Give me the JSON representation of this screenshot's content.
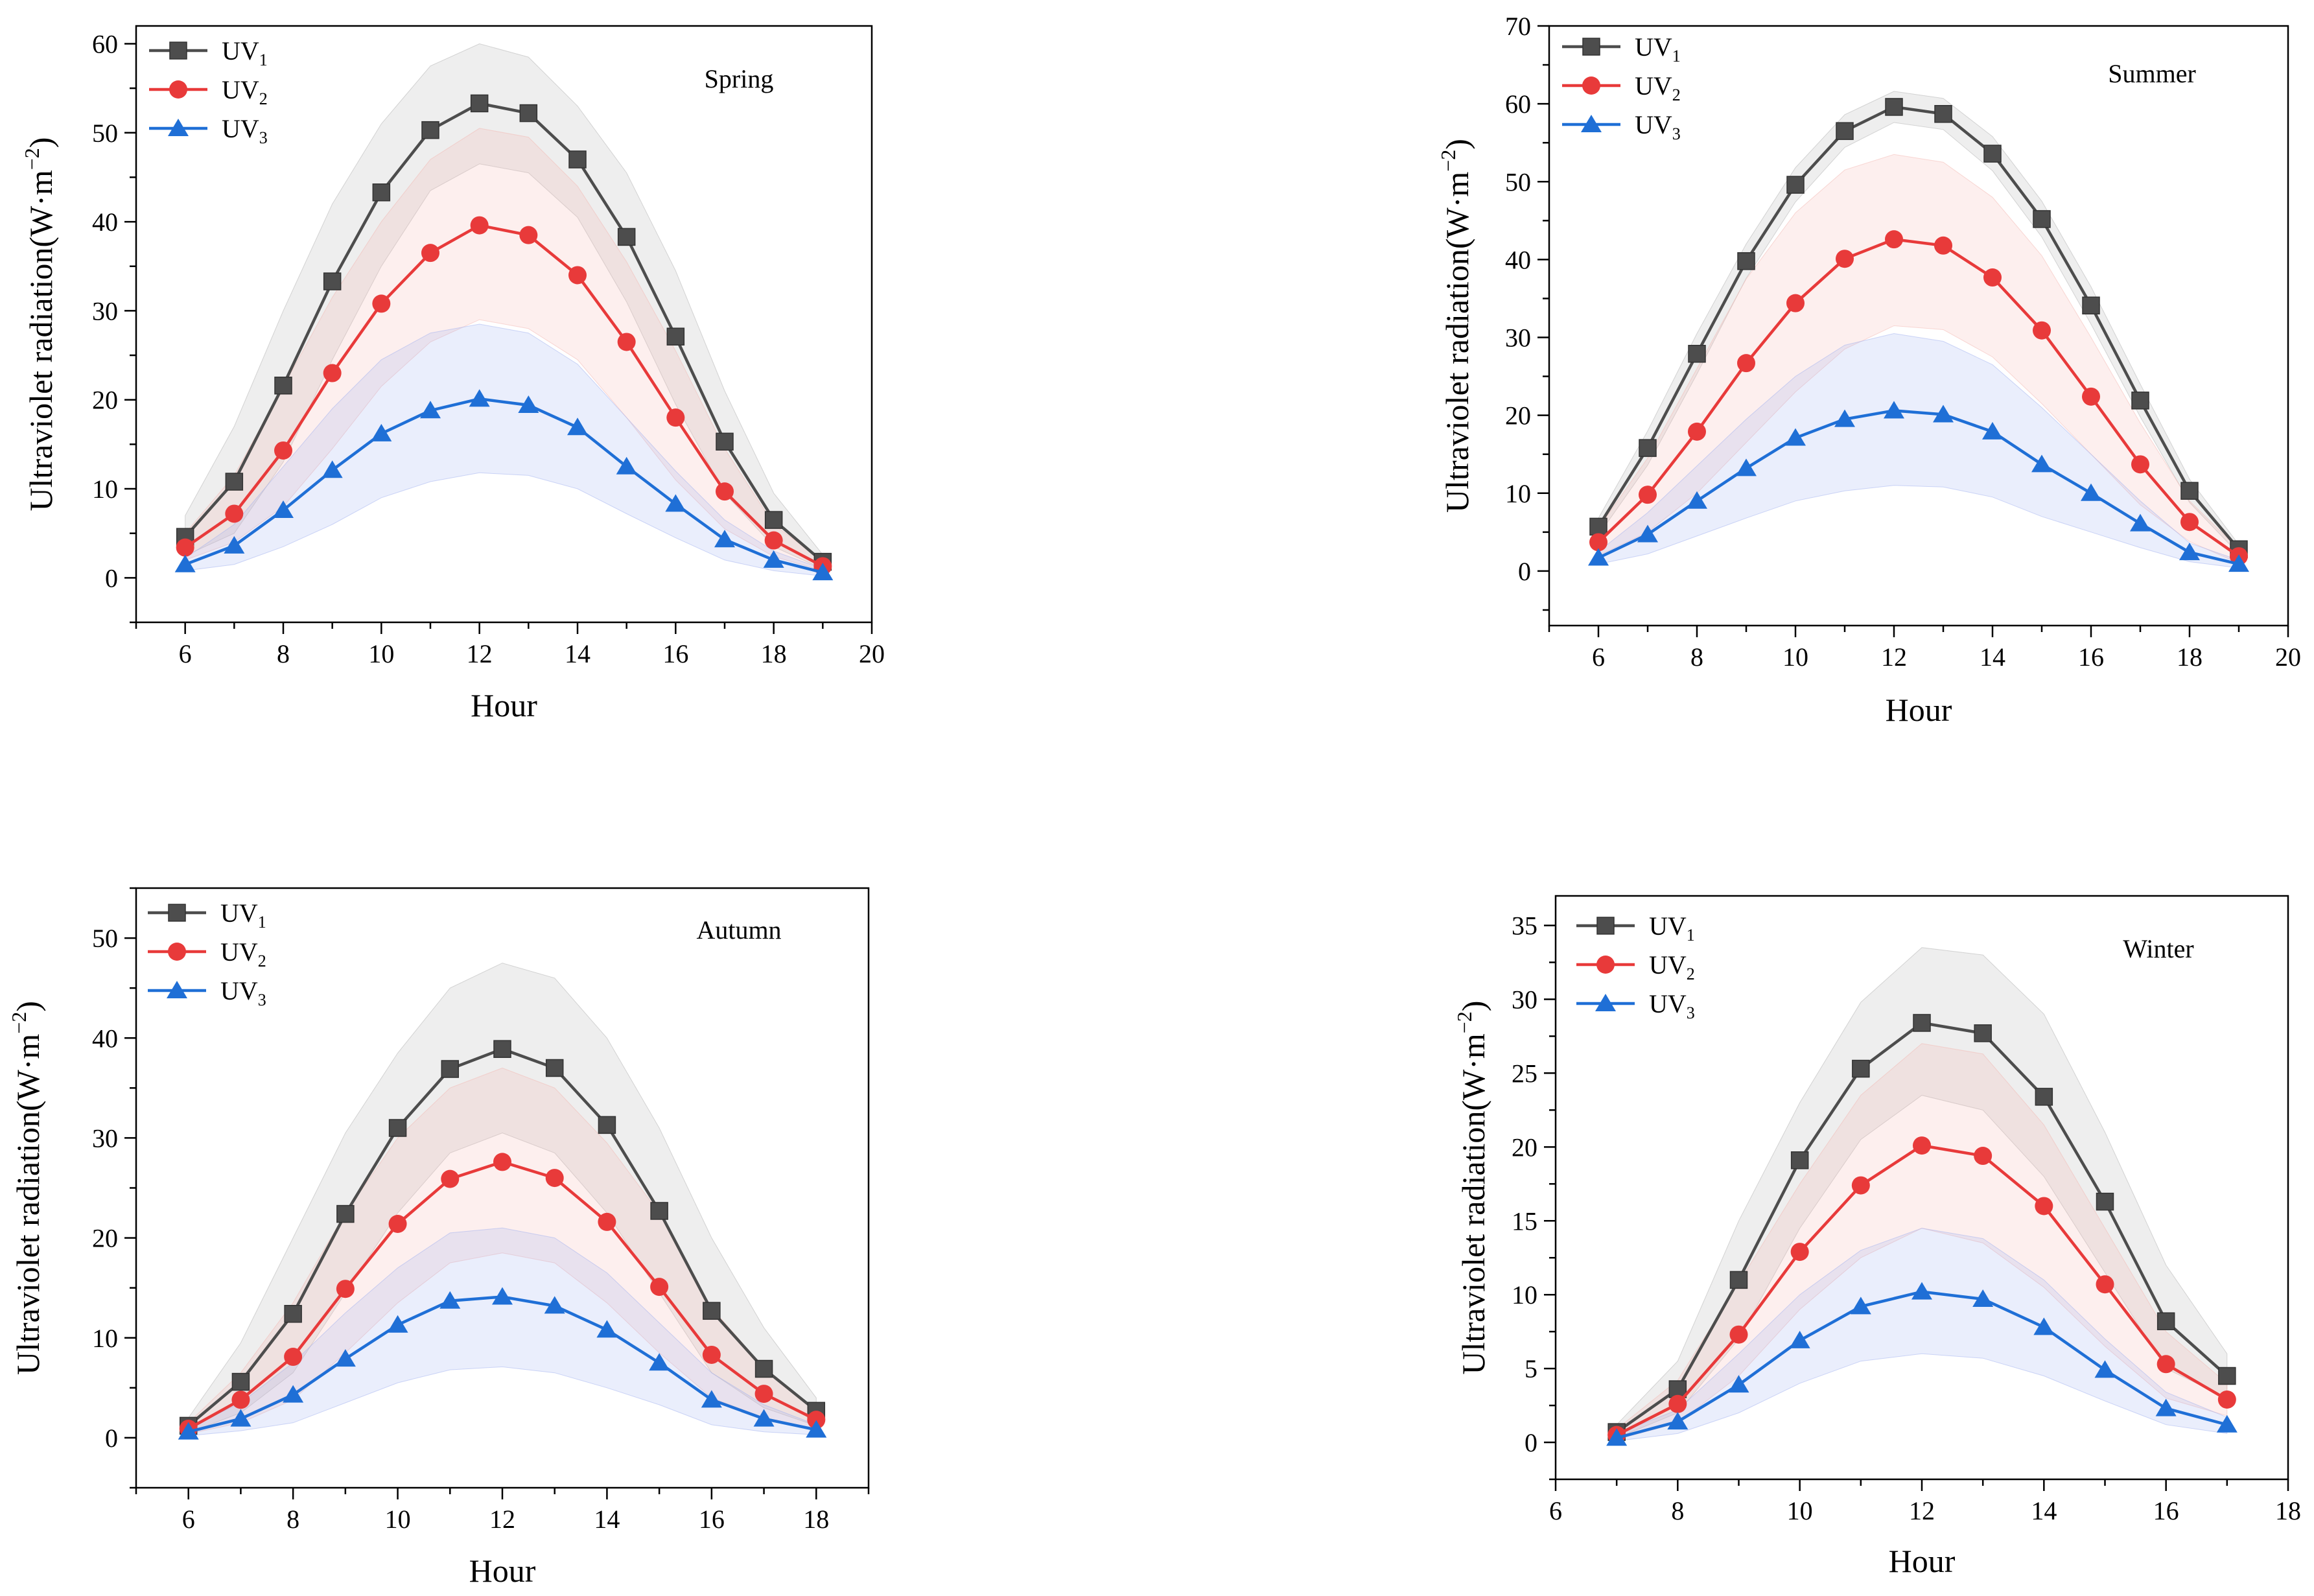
{
  "figure": {
    "series_names": [
      "UV1",
      "UV2",
      "UV3"
    ],
    "series_base": "UV",
    "series_subscripts": [
      "1",
      "2",
      "3"
    ],
    "colors": {
      "UV1": "#4d4d4d",
      "UV2": "#e83a3a",
      "UV3": "#1f6fd6",
      "UV1_band": "#b0b0b0",
      "UV2_band": "#f4b6b0",
      "UV3_band": "#9fb0f0"
    },
    "markers": {
      "UV1": "square",
      "UV2": "circle",
      "UV3": "triangle"
    }
  },
  "chart_data": [
    {
      "type": "line",
      "panel": "Spring",
      "title": "Spring",
      "xlabel": "Hour",
      "ylabel": "Ultraviolet radiation(W·m⁻²)",
      "ylabel_main": "Ultraviolet radiation(W·m",
      "ylabel_sup": "−2",
      "xlim": [
        5,
        20
      ],
      "ylim": [
        -5,
        62
      ],
      "xticks": [
        6,
        8,
        10,
        12,
        14,
        16,
        18,
        20
      ],
      "yticks": [
        0,
        10,
        20,
        30,
        40,
        50,
        60
      ],
      "x": [
        6,
        7,
        8,
        9,
        10,
        11,
        12,
        13,
        14,
        15,
        16,
        17,
        18,
        19
      ],
      "series": [
        {
          "name": "UV1",
          "values": [
            4.6,
            10.8,
            21.6,
            33.3,
            43.3,
            50.3,
            53.3,
            52.2,
            47.0,
            38.3,
            27.1,
            15.3,
            6.5,
            1.8
          ],
          "upper": [
            7.0,
            17.0,
            30.0,
            42.0,
            51.0,
            57.5,
            60.0,
            58.5,
            53.0,
            45.5,
            34.5,
            21.0,
            9.5,
            2.6
          ],
          "lower": [
            2.5,
            5.0,
            13.0,
            24.5,
            35.0,
            43.5,
            46.5,
            45.5,
            40.5,
            31.0,
            19.5,
            9.5,
            3.5,
            1.0
          ]
        },
        {
          "name": "UV2",
          "values": [
            3.4,
            7.2,
            14.3,
            23.0,
            30.8,
            36.5,
            39.6,
            38.5,
            34.0,
            26.5,
            18.0,
            9.7,
            4.2,
            1.3
          ],
          "upper": [
            5.0,
            11.5,
            21.5,
            31.5,
            40.0,
            47.0,
            50.5,
            49.5,
            44.0,
            35.5,
            25.5,
            14.5,
            6.0,
            1.9
          ],
          "lower": [
            2.0,
            4.0,
            8.0,
            14.5,
            21.5,
            26.5,
            29.0,
            28.0,
            24.5,
            18.0,
            11.0,
            5.5,
            2.4,
            0.8
          ]
        },
        {
          "name": "UV3",
          "values": [
            1.5,
            3.6,
            7.6,
            12.1,
            16.2,
            18.8,
            20.1,
            19.4,
            16.9,
            12.5,
            8.3,
            4.3,
            2.0,
            0.6
          ],
          "upper": [
            2.2,
            6.0,
            12.5,
            19.0,
            24.5,
            27.5,
            28.5,
            27.5,
            24.0,
            18.0,
            12.0,
            6.5,
            3.0,
            1.0
          ],
          "lower": [
            0.8,
            1.5,
            3.5,
            6.0,
            9.0,
            10.8,
            11.8,
            11.5,
            10.0,
            7.2,
            4.5,
            2.0,
            0.8,
            0.2
          ]
        }
      ]
    },
    {
      "type": "line",
      "panel": "Summer",
      "title": "Summer",
      "xlabel": "Hour",
      "ylabel": "Ultraviolet radiation(W·m⁻²)",
      "ylabel_main": "Ultraviolet radiation(W·m",
      "ylabel_sup": "−2",
      "xlim": [
        5,
        20
      ],
      "ylim": [
        -7,
        70
      ],
      "xticks": [
        6,
        8,
        10,
        12,
        14,
        16,
        18,
        20
      ],
      "yticks": [
        0,
        10,
        20,
        30,
        40,
        50,
        60,
        70
      ],
      "x": [
        6,
        7,
        8,
        9,
        10,
        11,
        12,
        13,
        14,
        15,
        16,
        17,
        18,
        19
      ],
      "series": [
        {
          "name": "UV1",
          "values": [
            5.7,
            15.8,
            27.9,
            39.8,
            49.6,
            56.5,
            59.6,
            58.7,
            53.6,
            45.2,
            34.1,
            21.9,
            10.3,
            2.8
          ],
          "upper": [
            6.8,
            18.0,
            30.5,
            42.0,
            51.8,
            58.6,
            61.6,
            60.7,
            55.8,
            47.5,
            36.5,
            24.0,
            11.8,
            3.4
          ],
          "lower": [
            4.6,
            13.6,
            25.3,
            37.6,
            47.4,
            54.4,
            57.6,
            56.7,
            51.4,
            42.9,
            31.7,
            19.8,
            8.8,
            2.2
          ]
        },
        {
          "name": "UV2",
          "values": [
            3.7,
            9.8,
            17.9,
            26.7,
            34.4,
            40.1,
            42.6,
            41.8,
            37.7,
            30.9,
            22.4,
            13.7,
            6.3,
            1.9
          ],
          "upper": [
            5.5,
            14.5,
            26.0,
            37.5,
            46.0,
            51.5,
            53.5,
            52.5,
            48.0,
            40.5,
            30.0,
            19.0,
            9.0,
            2.8
          ],
          "lower": [
            2.0,
            5.0,
            10.0,
            16.5,
            23.0,
            28.5,
            31.5,
            31.0,
            27.5,
            21.5,
            15.0,
            8.5,
            3.8,
            1.0
          ]
        },
        {
          "name": "UV3",
          "values": [
            1.7,
            4.7,
            9.0,
            13.2,
            17.1,
            19.5,
            20.6,
            20.1,
            17.9,
            13.7,
            10.0,
            6.1,
            2.4,
            0.9
          ],
          "upper": [
            2.5,
            7.5,
            13.5,
            19.5,
            25.0,
            29.0,
            30.5,
            29.5,
            26.5,
            21.0,
            15.0,
            9.0,
            3.6,
            1.4
          ],
          "lower": [
            0.9,
            2.2,
            4.5,
            6.8,
            9.0,
            10.3,
            11.0,
            10.8,
            9.5,
            7.0,
            5.0,
            3.0,
            1.2,
            0.4
          ]
        }
      ]
    },
    {
      "type": "line",
      "panel": "Autumn",
      "title": "Autumn",
      "xlabel": "Hour",
      "ylabel": "Ultraviolet radiation(W·m⁻²)",
      "ylabel_main": "Ultraviolet radiation(W·m",
      "ylabel_sup": "−2",
      "xlim": [
        5,
        19
      ],
      "ylim": [
        -5,
        55
      ],
      "xticks": [
        6,
        8,
        10,
        12,
        14,
        16,
        18
      ],
      "yticks": [
        0,
        10,
        20,
        30,
        40,
        50
      ],
      "x": [
        6,
        7,
        8,
        9,
        10,
        11,
        12,
        13,
        14,
        15,
        16,
        17,
        18
      ],
      "series": [
        {
          "name": "UV1",
          "values": [
            1.2,
            5.6,
            12.4,
            22.4,
            31.0,
            36.9,
            38.9,
            37.0,
            31.3,
            22.7,
            12.7,
            6.9,
            2.7
          ],
          "upper": [
            2.0,
            9.5,
            20.0,
            30.5,
            38.5,
            45.0,
            47.5,
            46.0,
            40.0,
            31.0,
            20.0,
            11.0,
            4.0
          ],
          "lower": [
            0.5,
            2.5,
            6.5,
            14.5,
            22.5,
            28.5,
            30.5,
            28.5,
            22.5,
            14.5,
            6.5,
            3.0,
            1.2
          ]
        },
        {
          "name": "UV2",
          "values": [
            0.9,
            3.8,
            8.1,
            14.9,
            21.4,
            25.9,
            27.6,
            26.0,
            21.6,
            15.1,
            8.3,
            4.4,
            1.8
          ],
          "upper": [
            1.5,
            6.5,
            13.5,
            22.5,
            30.0,
            35.0,
            37.0,
            35.0,
            29.5,
            22.5,
            13.0,
            7.0,
            2.8
          ],
          "lower": [
            0.4,
            1.5,
            3.8,
            8.5,
            13.5,
            17.5,
            18.5,
            17.5,
            13.5,
            8.5,
            4.0,
            2.0,
            0.9
          ]
        },
        {
          "name": "UV3",
          "values": [
            0.6,
            1.9,
            4.3,
            7.9,
            11.3,
            13.7,
            14.1,
            13.2,
            10.8,
            7.5,
            3.8,
            1.9,
            0.8
          ],
          "upper": [
            1.0,
            3.5,
            7.5,
            12.5,
            17.0,
            20.5,
            21.0,
            20.0,
            16.5,
            11.5,
            6.5,
            3.3,
            1.3
          ],
          "lower": [
            0.2,
            0.7,
            1.5,
            3.5,
            5.5,
            6.8,
            7.1,
            6.5,
            5.0,
            3.3,
            1.3,
            0.6,
            0.3
          ]
        }
      ]
    },
    {
      "type": "line",
      "panel": "Winter",
      "title": "Winter",
      "xlabel": "Hour",
      "ylabel": "Ultraviolet radiation(W·m⁻²)",
      "ylabel_main": "Ultraviolet radiation(W·m",
      "ylabel_sup": "−2",
      "xlim": [
        6,
        18
      ],
      "ylim": [
        -2.5,
        37
      ],
      "xticks": [
        6,
        8,
        10,
        12,
        14,
        16,
        18
      ],
      "yticks": [
        0,
        5,
        10,
        15,
        20,
        25,
        30,
        35
      ],
      "x": [
        7,
        8,
        9,
        10,
        11,
        12,
        13,
        14,
        15,
        16,
        17
      ],
      "series": [
        {
          "name": "UV1",
          "values": [
            0.7,
            3.6,
            11.0,
            19.1,
            25.3,
            28.4,
            27.7,
            23.4,
            16.3,
            8.2,
            4.5
          ],
          "upper": [
            1.2,
            5.5,
            15.0,
            23.0,
            29.8,
            33.5,
            33.0,
            29.0,
            21.0,
            12.0,
            6.0
          ],
          "lower": [
            0.3,
            2.0,
            7.0,
            14.5,
            20.5,
            23.5,
            22.5,
            18.0,
            11.5,
            5.0,
            3.0
          ]
        },
        {
          "name": "UV2",
          "values": [
            0.5,
            2.6,
            7.3,
            12.9,
            17.4,
            20.1,
            19.4,
            16.0,
            10.7,
            5.3,
            2.9
          ],
          "upper": [
            0.9,
            4.2,
            10.8,
            17.5,
            23.5,
            27.0,
            26.3,
            21.5,
            14.5,
            7.5,
            4.0
          ],
          "lower": [
            0.2,
            1.3,
            4.5,
            9.0,
            12.5,
            14.5,
            13.5,
            10.5,
            6.5,
            3.0,
            1.8
          ]
        },
        {
          "name": "UV3",
          "values": [
            0.3,
            1.4,
            3.9,
            6.9,
            9.2,
            10.2,
            9.7,
            7.8,
            4.9,
            2.3,
            1.2
          ],
          "upper": [
            0.6,
            2.2,
            6.0,
            10.0,
            13.0,
            14.5,
            13.8,
            11.0,
            7.0,
            3.4,
            1.7
          ],
          "lower": [
            0.1,
            0.6,
            2.0,
            4.0,
            5.5,
            6.0,
            5.7,
            4.5,
            2.8,
            1.2,
            0.6
          ]
        }
      ]
    }
  ]
}
